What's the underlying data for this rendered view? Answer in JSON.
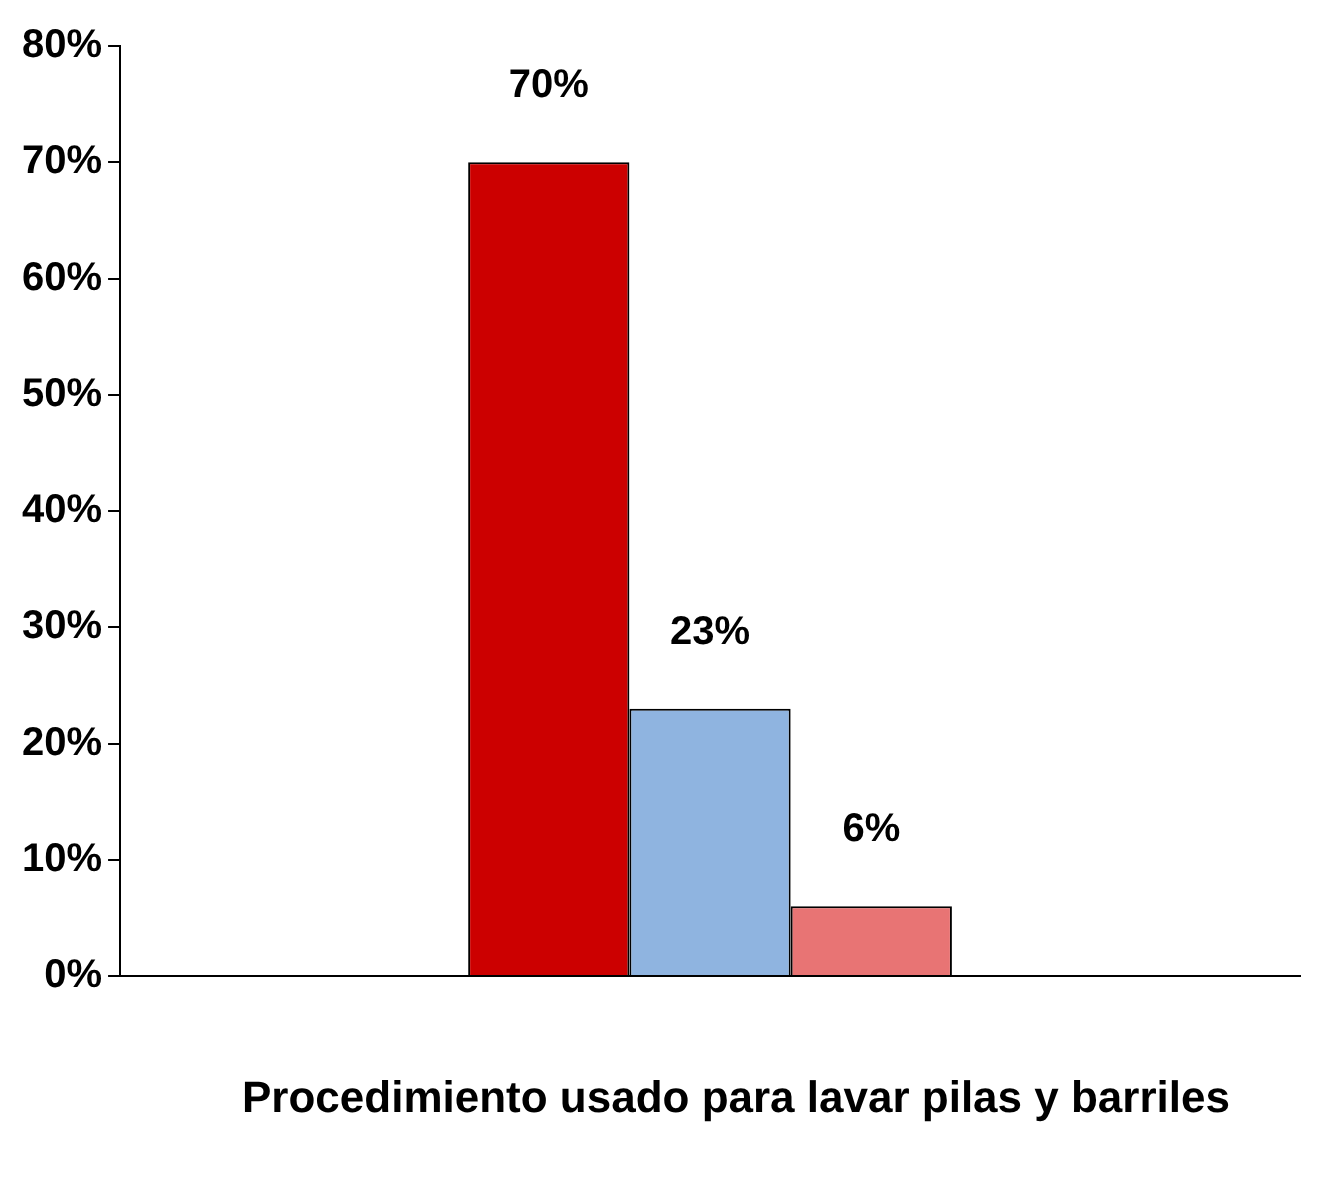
{
  "chart_data": {
    "type": "bar",
    "xlabel": "Procedimiento usado para lavar pilas y barriles",
    "categories": [
      null
    ],
    "series": [
      {
        "color": "#cc0000",
        "values": [
          70
        ],
        "value_labels": [
          "70%"
        ]
      },
      {
        "color": "#8fb4e0",
        "values": [
          23
        ],
        "value_labels": [
          "23%"
        ]
      },
      {
        "color": "#e87474",
        "values": [
          6
        ],
        "value_labels": [
          "6%"
        ]
      }
    ],
    "ylim": [
      0,
      80
    ],
    "yticks": [
      {
        "value": 0,
        "label": "0%"
      },
      {
        "value": 10,
        "label": "10%"
      },
      {
        "value": 20,
        "label": "20%"
      },
      {
        "value": 30,
        "label": "30%"
      },
      {
        "value": 40,
        "label": "40%"
      },
      {
        "value": 50,
        "label": "50%"
      },
      {
        "value": 60,
        "label": "60%"
      },
      {
        "value": 70,
        "label": "70%"
      },
      {
        "value": 80,
        "label": "80%"
      }
    ],
    "grid": false,
    "legend": false
  }
}
